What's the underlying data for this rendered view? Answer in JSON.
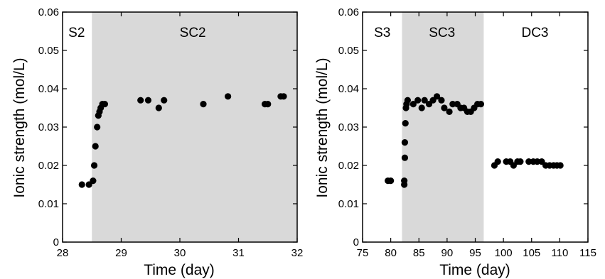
{
  "chart_data": [
    {
      "type": "scatter",
      "xlabel": "Time (day)",
      "ylabel": "Ionic strength (mol/L)",
      "xlim": [
        28,
        32
      ],
      "ylim": [
        0,
        0.06
      ],
      "x_ticks": [
        "28",
        "29",
        "30",
        "31",
        "32"
      ],
      "y_ticks": [
        "0",
        "0.01",
        "0.02",
        "0.03",
        "0.04",
        "0.05",
        "0.06"
      ],
      "grid": false,
      "shaded_regions": [
        {
          "label": "SC2",
          "x_start": 28.5,
          "x_end": 32,
          "color": "#d9d9d9"
        }
      ],
      "region_labels": [
        {
          "label": "S2",
          "x": 28.24
        },
        {
          "label": "SC2",
          "x": 30.22
        }
      ],
      "points": [
        {
          "x": 28.33,
          "y": 0.015
        },
        {
          "x": 28.45,
          "y": 0.015
        },
        {
          "x": 28.52,
          "y": 0.016
        },
        {
          "x": 28.54,
          "y": 0.02
        },
        {
          "x": 28.56,
          "y": 0.025
        },
        {
          "x": 28.59,
          "y": 0.03
        },
        {
          "x": 28.61,
          "y": 0.033
        },
        {
          "x": 28.63,
          "y": 0.034
        },
        {
          "x": 28.65,
          "y": 0.035
        },
        {
          "x": 28.68,
          "y": 0.036
        },
        {
          "x": 28.72,
          "y": 0.036
        },
        {
          "x": 29.33,
          "y": 0.037
        },
        {
          "x": 29.46,
          "y": 0.037
        },
        {
          "x": 29.64,
          "y": 0.035
        },
        {
          "x": 29.73,
          "y": 0.037
        },
        {
          "x": 30.4,
          "y": 0.036
        },
        {
          "x": 30.82,
          "y": 0.038
        },
        {
          "x": 31.45,
          "y": 0.036
        },
        {
          "x": 31.5,
          "y": 0.036
        },
        {
          "x": 31.72,
          "y": 0.038
        },
        {
          "x": 31.77,
          "y": 0.038
        }
      ]
    },
    {
      "type": "scatter",
      "xlabel": "Time (day)",
      "ylabel": "Ionic strength (mol/L)",
      "xlim": [
        75,
        115
      ],
      "ylim": [
        0,
        0.06
      ],
      "x_ticks": [
        "75",
        "80",
        "85",
        "90",
        "95",
        "100",
        "105",
        "110",
        "115"
      ],
      "y_ticks": [
        "0",
        "0.01",
        "0.02",
        "0.03",
        "0.04",
        "0.05",
        "0.06"
      ],
      "grid": false,
      "shaded_regions": [
        {
          "label": "SC3",
          "x_start": 82.0,
          "x_end": 96.5,
          "color": "#d9d9d9"
        }
      ],
      "region_labels": [
        {
          "label": "S3",
          "x": 78.5
        },
        {
          "label": "SC3",
          "x": 89.1
        },
        {
          "label": "DC3",
          "x": 105.6
        }
      ],
      "points": [
        {
          "x": 79.5,
          "y": 0.016
        },
        {
          "x": 80.0,
          "y": 0.016
        },
        {
          "x": 82.4,
          "y": 0.015
        },
        {
          "x": 82.4,
          "y": 0.016
        },
        {
          "x": 82.5,
          "y": 0.022
        },
        {
          "x": 82.5,
          "y": 0.026
        },
        {
          "x": 82.6,
          "y": 0.031
        },
        {
          "x": 82.7,
          "y": 0.035
        },
        {
          "x": 82.8,
          "y": 0.036
        },
        {
          "x": 83.0,
          "y": 0.037
        },
        {
          "x": 84.0,
          "y": 0.036
        },
        {
          "x": 84.8,
          "y": 0.037
        },
        {
          "x": 85.5,
          "y": 0.035
        },
        {
          "x": 86.0,
          "y": 0.037
        },
        {
          "x": 86.8,
          "y": 0.036
        },
        {
          "x": 87.5,
          "y": 0.037
        },
        {
          "x": 88.2,
          "y": 0.038
        },
        {
          "x": 89.0,
          "y": 0.037
        },
        {
          "x": 89.5,
          "y": 0.035
        },
        {
          "x": 90.4,
          "y": 0.034
        },
        {
          "x": 91.0,
          "y": 0.036
        },
        {
          "x": 91.8,
          "y": 0.036
        },
        {
          "x": 92.4,
          "y": 0.035
        },
        {
          "x": 93.0,
          "y": 0.035
        },
        {
          "x": 93.6,
          "y": 0.034
        },
        {
          "x": 94.2,
          "y": 0.034
        },
        {
          "x": 94.8,
          "y": 0.035
        },
        {
          "x": 95.4,
          "y": 0.036
        },
        {
          "x": 96.0,
          "y": 0.036
        },
        {
          "x": 98.4,
          "y": 0.02
        },
        {
          "x": 99.0,
          "y": 0.021
        },
        {
          "x": 100.5,
          "y": 0.021
        },
        {
          "x": 101.2,
          "y": 0.021
        },
        {
          "x": 101.8,
          "y": 0.02
        },
        {
          "x": 102.5,
          "y": 0.021
        },
        {
          "x": 103.0,
          "y": 0.021
        },
        {
          "x": 104.5,
          "y": 0.021
        },
        {
          "x": 105.3,
          "y": 0.021
        },
        {
          "x": 106.0,
          "y": 0.021
        },
        {
          "x": 106.8,
          "y": 0.021
        },
        {
          "x": 107.5,
          "y": 0.02
        },
        {
          "x": 108.2,
          "y": 0.02
        },
        {
          "x": 108.9,
          "y": 0.02
        },
        {
          "x": 109.5,
          "y": 0.02
        },
        {
          "x": 110.1,
          "y": 0.02
        }
      ]
    }
  ]
}
